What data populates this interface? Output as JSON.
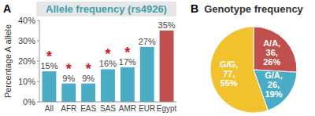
{
  "chart_data": [
    {
      "type": "bar",
      "panel": "A",
      "title": "Allele frequency (rs4926)",
      "y_label": "Percentage A allele",
      "categories": [
        "All",
        "AFR",
        "EAS",
        "SAS",
        "AMR",
        "EUR",
        "Egypt"
      ],
      "values": [
        15,
        9,
        9,
        16,
        17,
        27,
        35
      ],
      "value_labels": [
        "15%",
        "9%",
        "9%",
        "16%",
        "17%",
        "27%",
        "35%"
      ],
      "colors": [
        "#4bacc6",
        "#4bacc6",
        "#4bacc6",
        "#4bacc6",
        "#4bacc6",
        "#4bacc6",
        "#c0504d"
      ],
      "significant": [
        true,
        true,
        true,
        true,
        true,
        false,
        false
      ],
      "significance_label": "*",
      "ylim": [
        0,
        40
      ],
      "yticks": [
        {
          "value": 0,
          "label": "0%"
        },
        {
          "value": 10,
          "label": "10%"
        },
        {
          "value": 20,
          "label": "20%"
        },
        {
          "value": 30,
          "label": "30%"
        },
        {
          "value": 40,
          "label": "40%"
        }
      ],
      "grid": false,
      "data_labels": true
    },
    {
      "type": "pie",
      "panel": "B",
      "title": "Genotype frequency",
      "categories": [
        "A/A",
        "G/A",
        "G/G"
      ],
      "values": [
        36,
        26,
        77
      ],
      "value_labels": [
        "A/A,\n36,\n26%",
        "G/A,\n26,\n19%",
        "G/G,\n77,\n55%"
      ],
      "colors": [
        "#c0504d",
        "#4bacc6",
        "#f2c12e"
      ],
      "data_labels": true
    }
  ]
}
